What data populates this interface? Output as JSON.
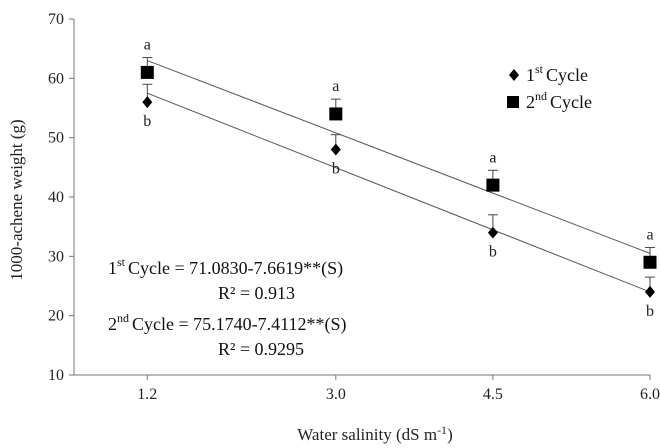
{
  "chart_data": {
    "type": "scatter",
    "x": [
      1.2,
      3.0,
      4.5,
      6.0
    ],
    "x_tick_labels": [
      "1.2",
      "3.0",
      "4.5",
      "6.0"
    ],
    "xlim": [
      0.5,
      6.0
    ],
    "ylim": [
      10,
      70
    ],
    "y_ticks": [
      10,
      20,
      30,
      40,
      50,
      60,
      70
    ],
    "y_tick_labels": [
      "10",
      "20",
      "30",
      "40",
      "50",
      "60",
      "70"
    ],
    "xlabel_pre": "Water salinity (dS m",
    "xlabel_sup": "-1",
    "xlabel_post": ")",
    "ylabel": "1000-achene weight (g)",
    "legend_placement": "top-right",
    "grid": false,
    "series": [
      {
        "name": "Cycle",
        "name_sup": "st",
        "name_pre": "1",
        "marker": "diamond",
        "color": "#000000",
        "values": [
          56,
          48,
          34,
          24
        ],
        "errors": [
          3,
          2.5,
          3,
          2.5
        ],
        "significance": [
          "b",
          "b",
          "b",
          "b"
        ],
        "fit": {
          "intercept": 71.083,
          "slope": -7.6619
        }
      },
      {
        "name": "Cycle",
        "name_sup": "nd",
        "name_pre": "2",
        "marker": "square",
        "color": "#000000",
        "values": [
          61,
          54,
          42,
          29
        ],
        "errors": [
          2.5,
          2.5,
          2.5,
          2.5
        ],
        "significance": [
          "a",
          "a",
          "a",
          "a"
        ],
        "fit": {
          "intercept": 75.174,
          "slope": -7.4112
        }
      }
    ],
    "equations": [
      {
        "pre": "1",
        "sup": "st",
        "label": "Cycle",
        "text": " = 71.0830-7.6619**(S)",
        "r2": "R² = 0.913"
      },
      {
        "pre": "2",
        "sup": "nd",
        "label": "Cycle",
        "text": " = 75.1740-7.4112**(S)",
        "r2": "R² = 0.9295"
      }
    ]
  }
}
